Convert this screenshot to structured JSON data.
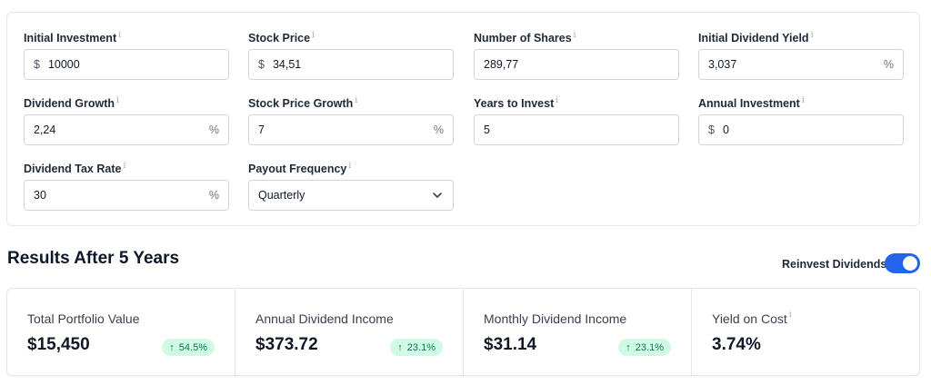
{
  "form": {
    "initial_investment": {
      "label": "Initial Investment",
      "prefix": "$",
      "value": "10000"
    },
    "stock_price": {
      "label": "Stock Price",
      "prefix": "$",
      "value": "34,51"
    },
    "number_of_shares": {
      "label": "Number of Shares",
      "value": "289,77"
    },
    "initial_dividend_yield": {
      "label": "Initial Dividend Yield",
      "value": "3,037",
      "suffix": "%"
    },
    "dividend_growth": {
      "label": "Dividend Growth",
      "value": "2,24",
      "suffix": "%"
    },
    "stock_price_growth": {
      "label": "Stock Price Growth",
      "value": "7",
      "suffix": "%"
    },
    "years_to_invest": {
      "label": "Years to Invest",
      "value": "5"
    },
    "annual_investment": {
      "label": "Annual Investment",
      "prefix": "$",
      "value": "0"
    },
    "dividend_tax_rate": {
      "label": "Dividend Tax Rate",
      "value": "30",
      "suffix": "%"
    },
    "payout_frequency": {
      "label": "Payout Frequency",
      "selected": "Quarterly"
    }
  },
  "info_glyph": "i",
  "results": {
    "title": "Results After 5 Years",
    "reinvest_label": "Reinvest Dividends",
    "reinvest_on": true,
    "stats": [
      {
        "label": "Total Portfolio Value",
        "value": "$15,450",
        "change": "54.5%"
      },
      {
        "label": "Annual Dividend Income",
        "value": "$373.72",
        "change": "23.1%"
      },
      {
        "label": "Monthly Dividend Income",
        "value": "$31.14",
        "change": "23.1%"
      },
      {
        "label": "Yield on Cost",
        "value": "3.74%"
      }
    ]
  },
  "colors": {
    "accent": "#2563eb",
    "badge_bg": "#d1fae5",
    "badge_text": "#047857"
  },
  "icons": {
    "arrow_up": "↑",
    "info": "info-icon",
    "chevron": "chevron-down-icon"
  }
}
